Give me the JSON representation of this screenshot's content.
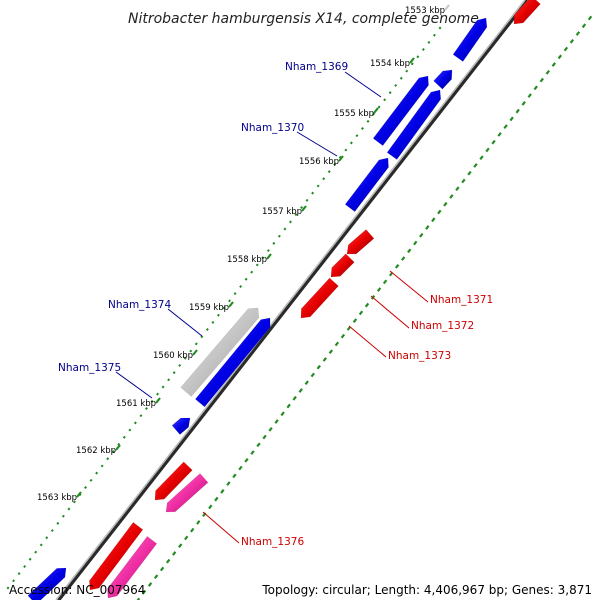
{
  "title": "Nitrobacter hamburgensis X14, complete genome",
  "accession": "Accession: NC_007964",
  "summary": "Topology: circular; Length: 4,406,967 bp; Genes: 3,871",
  "colors": {
    "forward_gene": "#0000ee",
    "reverse_gene": "#ee0000",
    "pseudo_gene": "#bdbdbd",
    "rna_gene": "#ee2aa0",
    "backbone": "#777777",
    "tick_green": "#228b22",
    "label_blue": "#00008b",
    "label_red": "#cc0000"
  },
  "kbp_ticks": [
    {
      "label": "1553 kbp",
      "faded": true
    },
    {
      "label": "1554 kbp"
    },
    {
      "label": "1555 kbp"
    },
    {
      "label": "1556 kbp"
    },
    {
      "label": "1557 kbp"
    },
    {
      "label": "1558 kbp"
    },
    {
      "label": "1559 kbp"
    },
    {
      "label": "1560 kbp"
    },
    {
      "label": "1561 kbp"
    },
    {
      "label": "1562 kbp"
    },
    {
      "label": "1563 kbp"
    }
  ],
  "gene_labels_forward": [
    "Nham_1369",
    "Nham_1370",
    "Nham_1374",
    "Nham_1375"
  ],
  "gene_labels_reverse": [
    "Nham_1371",
    "Nham_1372",
    "Nham_1373",
    "Nham_1376"
  ]
}
